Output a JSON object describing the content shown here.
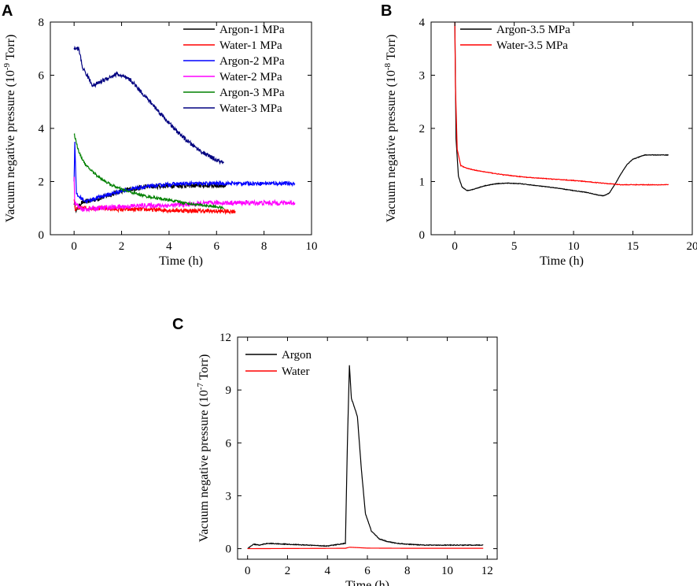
{
  "figure_labels": [
    "A",
    "B",
    "C"
  ],
  "chart_data": [
    {
      "panel": "A",
      "type": "line",
      "xlabel": "Time (h)",
      "ylabel": "Vacuum negative pressure (10",
      "ylabel_exponent": "-9",
      "ylabel_unit": " Torr)",
      "xlim": [
        -1,
        10
      ],
      "ylim": [
        0,
        8
      ],
      "xticks": [
        0,
        2,
        4,
        6,
        8,
        10
      ],
      "yticks": [
        0,
        2,
        4,
        6,
        8
      ],
      "legend_position": "top-right",
      "series": [
        {
          "name": "Argon-1 MPa",
          "color": "#000000",
          "noise": 0.09,
          "x": [
            0,
            0.1,
            0.3,
            1,
            2,
            3,
            4,
            5,
            6,
            6.4
          ],
          "y": [
            1.2,
            0.9,
            1.2,
            1.35,
            1.65,
            1.8,
            1.85,
            1.85,
            1.85,
            1.85
          ]
        },
        {
          "name": "Water-1 MPa",
          "color": "#ff0000",
          "noise": 0.08,
          "x": [
            0,
            0.05,
            0.3,
            1,
            2,
            3,
            4,
            5,
            6,
            6.8
          ],
          "y": [
            1.4,
            0.95,
            1.0,
            1.0,
            0.95,
            0.95,
            0.92,
            0.9,
            0.88,
            0.88
          ]
        },
        {
          "name": "Argon-2 MPa",
          "color": "#0000ff",
          "noise": 0.07,
          "x": [
            0,
            0.03,
            0.1,
            0.5,
            1,
            2,
            3,
            4,
            5,
            6,
            7,
            8,
            9,
            9.3
          ],
          "y": [
            2.0,
            3.5,
            1.5,
            1.25,
            1.4,
            1.65,
            1.8,
            1.9,
            1.92,
            1.93,
            1.93,
            1.93,
            1.93,
            1.93
          ]
        },
        {
          "name": "Water-2 MPa",
          "color": "#ff00ff",
          "noise": 0.09,
          "x": [
            0,
            0.03,
            0.3,
            1,
            2,
            3,
            4,
            5,
            6,
            7,
            8,
            9,
            9.3
          ],
          "y": [
            2.1,
            1.2,
            0.95,
            1.0,
            1.05,
            1.1,
            1.1,
            1.15,
            1.2,
            1.2,
            1.2,
            1.2,
            1.2
          ]
        },
        {
          "name": "Argon-3 MPa",
          "color": "#008000",
          "noise": 0.05,
          "x": [
            0,
            0.2,
            0.5,
            1,
            1.5,
            2,
            3,
            4,
            5,
            6,
            6.3
          ],
          "y": [
            3.8,
            3.1,
            2.6,
            2.2,
            1.9,
            1.7,
            1.45,
            1.3,
            1.15,
            1.05,
            1.0
          ]
        },
        {
          "name": "Water-3 MPa",
          "color": "#000080",
          "noise": 0.08,
          "x": [
            0,
            0.2,
            0.35,
            0.8,
            1.2,
            1.8,
            2.4,
            3,
            3.6,
            4.2,
            4.8,
            5.4,
            6,
            6.3
          ],
          "y": [
            7.0,
            7.0,
            6.3,
            5.6,
            5.8,
            6.05,
            5.8,
            5.2,
            4.6,
            4.0,
            3.5,
            3.1,
            2.8,
            2.7
          ]
        }
      ]
    },
    {
      "panel": "B",
      "type": "line",
      "xlabel": "Time (h)",
      "ylabel": "Vacuum negative pressure (10",
      "ylabel_exponent": "-8",
      "ylabel_unit": " Torr)",
      "xlim": [
        -2,
        20
      ],
      "ylim": [
        0,
        4
      ],
      "xticks": [
        0,
        5,
        10,
        15,
        20
      ],
      "yticks": [
        0,
        1,
        2,
        3,
        4
      ],
      "legend_position": "top-right",
      "series": [
        {
          "name": "Argon-3.5 MPa",
          "color": "#000000",
          "noise": 0.005,
          "x": [
            0,
            0.1,
            0.3,
            0.6,
            1,
            1.5,
            2.5,
            3.5,
            4.5,
            5.5,
            7,
            8.5,
            10,
            11,
            12,
            12.5,
            13,
            13.5,
            14,
            14.5,
            15,
            16,
            17,
            18
          ],
          "y": [
            4.0,
            1.8,
            1.1,
            0.9,
            0.83,
            0.85,
            0.92,
            0.96,
            0.97,
            0.96,
            0.92,
            0.88,
            0.83,
            0.8,
            0.75,
            0.73,
            0.78,
            0.95,
            1.15,
            1.32,
            1.42,
            1.5,
            1.5,
            1.5
          ]
        },
        {
          "name": "Water-3.5 MPa",
          "color": "#ff0000",
          "noise": 0.006,
          "x": [
            0,
            0.05,
            0.2,
            0.5,
            1,
            2,
            4,
            6,
            8,
            10,
            12,
            14,
            16,
            18
          ],
          "y": [
            4.0,
            2.8,
            1.6,
            1.3,
            1.25,
            1.2,
            1.13,
            1.08,
            1.05,
            1.02,
            0.98,
            0.94,
            0.94,
            0.94
          ]
        }
      ]
    },
    {
      "panel": "C",
      "type": "line",
      "xlabel": "Time (h)",
      "ylabel": "Vacuum negative pressure (10",
      "ylabel_exponent": "-7",
      "ylabel_unit": " Torr)",
      "xlim": [
        -0.5,
        12.5
      ],
      "ylim": [
        -0.6,
        12
      ],
      "xticks": [
        0,
        2,
        4,
        6,
        8,
        10,
        12
      ],
      "yticks": [
        0,
        3,
        6,
        9,
        12
      ],
      "legend_position": "top-left",
      "series": [
        {
          "name": "Argon",
          "color": "#000000",
          "noise": 0.02,
          "x": [
            0,
            0.3,
            0.6,
            1,
            2,
            3,
            4,
            4.9,
            5.0,
            5.1,
            5.2,
            5.3,
            5.5,
            5.7,
            5.9,
            6.2,
            6.6,
            7,
            7.5,
            8,
            9,
            10,
            11,
            11.8
          ],
          "y": [
            0.0,
            0.25,
            0.2,
            0.3,
            0.25,
            0.2,
            0.15,
            0.3,
            6.0,
            10.4,
            8.5,
            8.2,
            7.5,
            4.5,
            2.0,
            1.0,
            0.55,
            0.4,
            0.3,
            0.25,
            0.2,
            0.2,
            0.2,
            0.2
          ]
        },
        {
          "name": "Water",
          "color": "#ff0000",
          "noise": 0.0,
          "x": [
            0,
            4.9,
            5.1,
            5.5,
            6,
            8,
            11.8
          ],
          "y": [
            0.0,
            0.02,
            0.08,
            0.06,
            0.03,
            0.02,
            0.02
          ]
        }
      ]
    }
  ]
}
